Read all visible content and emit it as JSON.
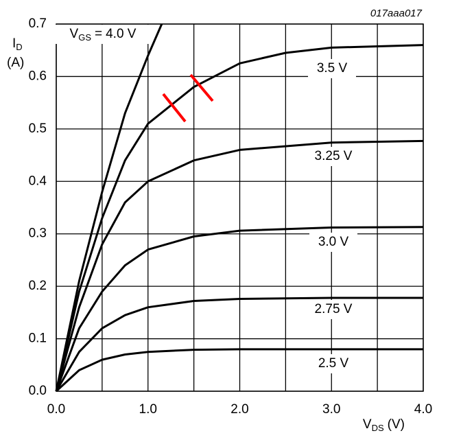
{
  "chart_data": {
    "type": "line",
    "code": "017aaa017",
    "ylabel": {
      "symbol": "I",
      "subscript": "D",
      "unit": "(A)"
    },
    "xlabel": {
      "symbol": "V",
      "subscript": "DS",
      "unit": "(V)"
    },
    "gate_label": {
      "symbol": "V",
      "subscript": "GS",
      "equals": "="
    },
    "xlim": [
      0,
      4
    ],
    "ylim": [
      0,
      0.7
    ],
    "xticks": [
      {
        "value": 0,
        "label": "0.0"
      },
      {
        "value": 1,
        "label": "1.0"
      },
      {
        "value": 2,
        "label": "2.0"
      },
      {
        "value": 3,
        "label": "3.0"
      },
      {
        "value": 4,
        "label": "4.0"
      }
    ],
    "x_minor_ticks": [
      0.5,
      1.5,
      2.5,
      3.5
    ],
    "yticks": [
      {
        "value": 0,
        "label": "0.0"
      },
      0.1,
      0.2,
      0.3,
      0.4,
      0.5,
      0.6,
      0.7
    ],
    "grid": true,
    "series": [
      {
        "name": "4.0 V",
        "color": "#000000",
        "x": [
          0,
          0.25,
          0.5,
          0.75,
          1.0,
          1.15
        ],
        "values": [
          0,
          0.21,
          0.38,
          0.53,
          0.64,
          0.7
        ]
      },
      {
        "name": "3.5 V",
        "color": "#000000",
        "x": [
          0,
          0.25,
          0.5,
          0.75,
          1.0,
          1.5,
          2.0,
          2.5,
          3.0,
          4.0
        ],
        "values": [
          0,
          0.19,
          0.33,
          0.44,
          0.51,
          0.58,
          0.625,
          0.645,
          0.655,
          0.66
        ]
      },
      {
        "name": "3.25 V",
        "color": "#000000",
        "x": [
          0,
          0.25,
          0.5,
          0.75,
          1.0,
          1.5,
          2.0,
          3.0,
          4.0
        ],
        "values": [
          0,
          0.16,
          0.28,
          0.36,
          0.4,
          0.44,
          0.46,
          0.474,
          0.477
        ]
      },
      {
        "name": "3.0 V",
        "color": "#000000",
        "x": [
          0,
          0.25,
          0.5,
          0.75,
          1.0,
          1.5,
          2.0,
          3.0,
          4.0
        ],
        "values": [
          0,
          0.12,
          0.19,
          0.24,
          0.27,
          0.295,
          0.306,
          0.312,
          0.313
        ]
      },
      {
        "name": "2.75 V",
        "color": "#000000",
        "x": [
          0,
          0.25,
          0.5,
          0.75,
          1.0,
          1.5,
          2.0,
          3.0,
          4.0
        ],
        "values": [
          0,
          0.075,
          0.12,
          0.145,
          0.16,
          0.172,
          0.176,
          0.178,
          0.178
        ]
      },
      {
        "name": "2.5 V",
        "color": "#000000",
        "x": [
          0,
          0.25,
          0.5,
          0.75,
          1.0,
          1.5,
          2.0,
          3.0,
          4.0
        ],
        "values": [
          0,
          0.04,
          0.06,
          0.07,
          0.075,
          0.079,
          0.08,
          0.08,
          0.08
        ]
      }
    ]
  }
}
